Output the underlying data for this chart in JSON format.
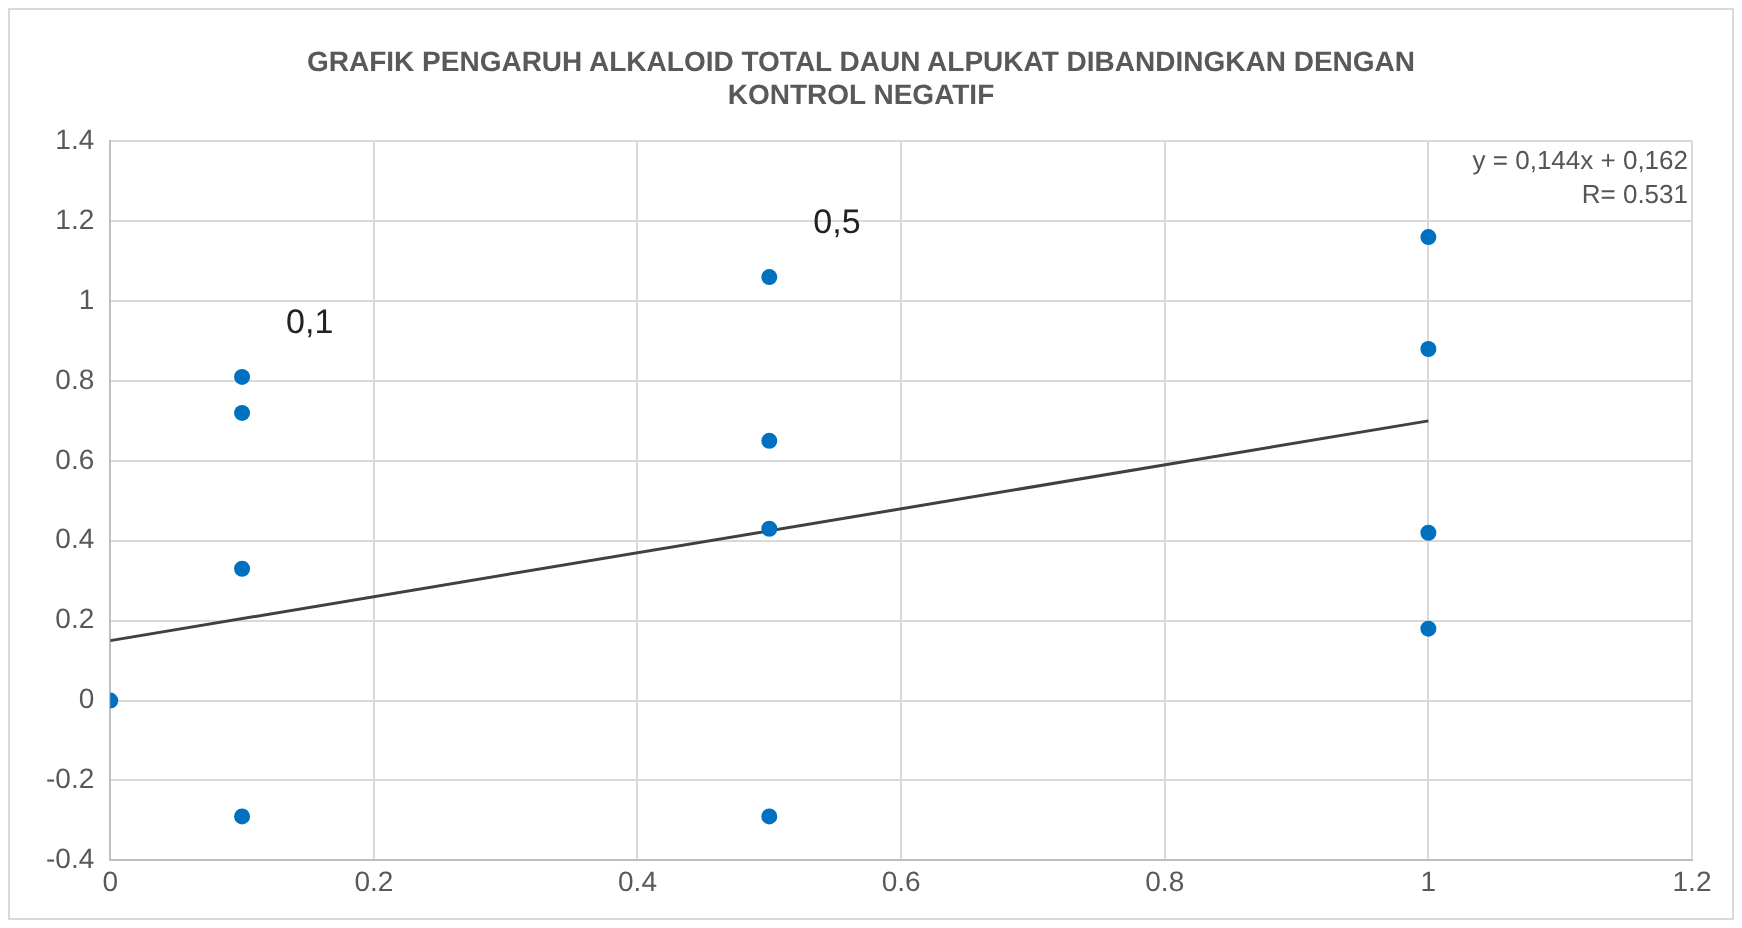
{
  "chart_data": {
    "type": "scatter",
    "title": "GRAFIK PENGARUH ALKALOID TOTAL DAUN ALPUKAT DIBANDINGKAN DENGAN KONTROL NEGATIF",
    "xlim": [
      0,
      1.2
    ],
    "xticks": [
      0,
      0.2,
      0.4,
      0.6,
      0.8,
      1,
      1.2
    ],
    "ylim": [
      -0.4,
      1.4
    ],
    "yticks": [
      -0.4,
      -0.2,
      0,
      0.2,
      0.4,
      0.6,
      0.8,
      1,
      1.2,
      1.4
    ],
    "grid": true,
    "legend": false,
    "marker": "circle",
    "series": [
      {
        "type": "scatter",
        "color": "#0070c0",
        "x": [
          0,
          0.1,
          0.1,
          0.1,
          0.1,
          0.5,
          0.5,
          0.5,
          0.5,
          1,
          1,
          1,
          1
        ],
        "values": [
          0,
          0.81,
          0.72,
          0.33,
          -0.29,
          1.06,
          0.65,
          0.43,
          -0.29,
          1.16,
          0.88,
          0.42,
          0.18
        ]
      },
      {
        "type": "line",
        "color": "#404040",
        "marker": "none",
        "line_style": "solid",
        "x": [
          0,
          1
        ],
        "values": [
          0.15,
          0.7
        ]
      }
    ],
    "annotations": [
      {
        "text": "0,1",
        "x": 0.1,
        "y": 0.81
      },
      {
        "text": "0,5",
        "x": 0.5,
        "y": 1.06
      },
      "y = 0,144x + 0,162",
      "R= 0.531"
    ]
  }
}
